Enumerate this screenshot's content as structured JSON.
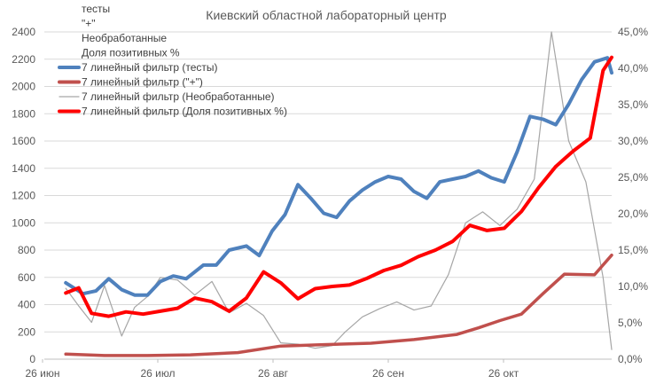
{
  "chart_data": {
    "type": "line",
    "title": "Киевский областной лабораторный центр",
    "x_ticks": [
      "26 июн",
      "26 июл",
      "26 авг",
      "26 сен",
      "26 окт"
    ],
    "x_range": [
      "2020-06-26",
      "2020-11-05"
    ],
    "y_left": {
      "range": [
        0,
        2400
      ],
      "ticks": [
        "0",
        "200",
        "400",
        "600",
        "800",
        "1000",
        "1200",
        "1400",
        "1600",
        "1800",
        "2000",
        "2200",
        "2400"
      ]
    },
    "y_right": {
      "range": [
        0,
        45
      ],
      "unit": "%",
      "ticks": [
        "0,0%",
        "5,0%",
        "10,0%",
        "15,0%",
        "20,0%",
        "25,0%",
        "30,0%",
        "35,0%",
        "40,0%",
        "45,0%"
      ]
    },
    "grid": "horizontal",
    "legend_position": "top-left",
    "legend": [
      {
        "label": "тесты",
        "style": "none"
      },
      {
        "label": "\"+\"",
        "style": "none"
      },
      {
        "label": "Необработанные",
        "style": "none"
      },
      {
        "label": "Доля позитивных %",
        "style": "none"
      },
      {
        "label": "7 линейный фильтр (тесты)",
        "style": "blue-thick"
      },
      {
        "label": "7 линейный фильтр (\"+\")",
        "style": "brown-thick"
      },
      {
        "label": "7 линейный фильтр (Необработанные)",
        "style": "gray-thin"
      },
      {
        "label": "7 линейный фильтр (Доля позитивных %)",
        "style": "red-thick"
      }
    ],
    "series": [
      {
        "name": "7 линейный фильтр (тесты)",
        "axis": "left",
        "color": "#4f81bd",
        "x": [
          "2020-07-01",
          "2020-07-05",
          "2020-07-08",
          "2020-07-11",
          "2020-07-14",
          "2020-07-17",
          "2020-07-20",
          "2020-07-23",
          "2020-07-26",
          "2020-07-29",
          "2020-08-02",
          "2020-08-05",
          "2020-08-08",
          "2020-08-12",
          "2020-08-15",
          "2020-08-18",
          "2020-08-21",
          "2020-08-24",
          "2020-08-27",
          "2020-08-30",
          "2020-09-02",
          "2020-09-05",
          "2020-09-08",
          "2020-09-11",
          "2020-09-14",
          "2020-09-17",
          "2020-09-20",
          "2020-09-23",
          "2020-09-26",
          "2020-09-29",
          "2020-10-02",
          "2020-10-05",
          "2020-10-08",
          "2020-10-11",
          "2020-10-14",
          "2020-10-17",
          "2020-10-20",
          "2020-10-23",
          "2020-10-26",
          "2020-10-29",
          "2020-11-01",
          "2020-11-04",
          "2020-11-05"
        ],
        "values": [
          560,
          480,
          500,
          590,
          510,
          470,
          470,
          570,
          610,
          590,
          690,
          690,
          800,
          830,
          760,
          940,
          1060,
          1280,
          1180,
          1070,
          1040,
          1160,
          1240,
          1300,
          1340,
          1320,
          1230,
          1180,
          1300,
          1320,
          1340,
          1380,
          1330,
          1300,
          1520,
          1780,
          1760,
          1720,
          1870,
          2050,
          2180,
          2210,
          2100
        ]
      },
      {
        "name": "7 линейный фильтр (\"+\")",
        "axis": "right",
        "color": "#c0504d",
        "x": [
          "2020-07-01",
          "2020-07-10",
          "2020-07-20",
          "2020-07-30",
          "2020-08-10",
          "2020-08-20",
          "2020-08-30",
          "2020-09-10",
          "2020-09-20",
          "2020-09-30",
          "2020-10-05",
          "2020-10-10",
          "2020-10-15",
          "2020-10-20",
          "2020-10-25",
          "2020-11-01",
          "2020-11-05"
        ],
        "values": [
          0.7,
          0.5,
          0.5,
          0.6,
          0.9,
          1.8,
          2.0,
          2.2,
          2.7,
          3.4,
          4.3,
          5.3,
          6.2,
          9.0,
          11.7,
          11.6,
          14.3
        ]
      },
      {
        "name": "7 линейный фильтр (Необработанные)",
        "axis": "left",
        "color": "#a6a6a6",
        "x": [
          "2020-07-01",
          "2020-07-04",
          "2020-07-07",
          "2020-07-10",
          "2020-07-14",
          "2020-07-17",
          "2020-07-20",
          "2020-07-23",
          "2020-07-27",
          "2020-07-31",
          "2020-08-04",
          "2020-08-08",
          "2020-08-12",
          "2020-08-16",
          "2020-08-20",
          "2020-08-24",
          "2020-08-28",
          "2020-09-01",
          "2020-09-04",
          "2020-09-08",
          "2020-09-12",
          "2020-09-16",
          "2020-09-20",
          "2020-09-24",
          "2020-09-28",
          "2020-10-02",
          "2020-10-06",
          "2020-10-10",
          "2020-10-14",
          "2020-10-18",
          "2020-10-22",
          "2020-10-26",
          "2020-10-30",
          "2020-11-03",
          "2020-11-05"
        ],
        "values": [
          520,
          390,
          270,
          540,
          170,
          380,
          460,
          600,
          580,
          470,
          570,
          340,
          410,
          320,
          120,
          110,
          80,
          100,
          200,
          310,
          370,
          420,
          360,
          390,
          620,
          1000,
          1080,
          980,
          1100,
          1320,
          2400,
          1600,
          1300,
          600,
          70
        ]
      },
      {
        "name": "7 линейный фильтр (Доля позитивных %)",
        "axis": "right",
        "color": "#ff0000",
        "x": [
          "2020-07-01",
          "2020-07-04",
          "2020-07-07",
          "2020-07-11",
          "2020-07-15",
          "2020-07-19",
          "2020-07-23",
          "2020-07-27",
          "2020-07-31",
          "2020-08-04",
          "2020-08-08",
          "2020-08-12",
          "2020-08-16",
          "2020-08-20",
          "2020-08-24",
          "2020-08-28",
          "2020-09-01",
          "2020-09-05",
          "2020-09-09",
          "2020-09-13",
          "2020-09-17",
          "2020-09-21",
          "2020-09-25",
          "2020-09-29",
          "2020-10-03",
          "2020-10-07",
          "2020-10-11",
          "2020-10-15",
          "2020-10-19",
          "2020-10-23",
          "2020-10-27",
          "2020-10-31",
          "2020-11-03",
          "2020-11-05"
        ],
        "values": [
          9.1,
          9.8,
          6.3,
          5.9,
          6.5,
          6.2,
          6.6,
          7.0,
          8.4,
          7.9,
          6.6,
          8.4,
          12.0,
          10.5,
          8.3,
          9.7,
          10.0,
          10.2,
          11.1,
          12.2,
          12.9,
          14.1,
          15.0,
          16.2,
          18.4,
          17.7,
          18.0,
          20.3,
          23.6,
          26.5,
          28.6,
          30.4,
          39.7,
          41.5
        ]
      }
    ]
  }
}
